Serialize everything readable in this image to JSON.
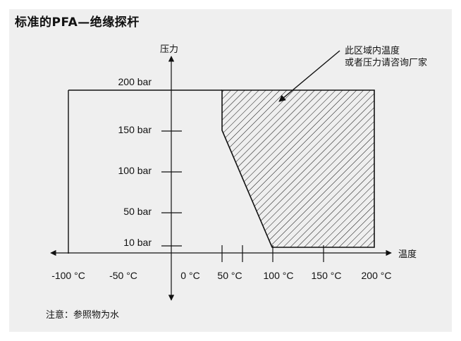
{
  "title": "标准的PFA—绝缘探杆",
  "callout": {
    "line1": "此区域内温度",
    "line2": "或者压力请咨询厂家"
  },
  "axes": {
    "y_name": "压力",
    "x_name": "温度"
  },
  "y_labels": [
    "200 bar",
    "150 bar",
    "100 bar",
    "50 bar",
    "10 bar"
  ],
  "x_labels": [
    "-100 °C",
    "-50 °C",
    "0 °C",
    "50 °C",
    "100 °C",
    "150 °C",
    "200 °C"
  ],
  "note": "注意：参照物为水",
  "colors": {
    "panel": "#efefef",
    "line": "#111111"
  }
}
